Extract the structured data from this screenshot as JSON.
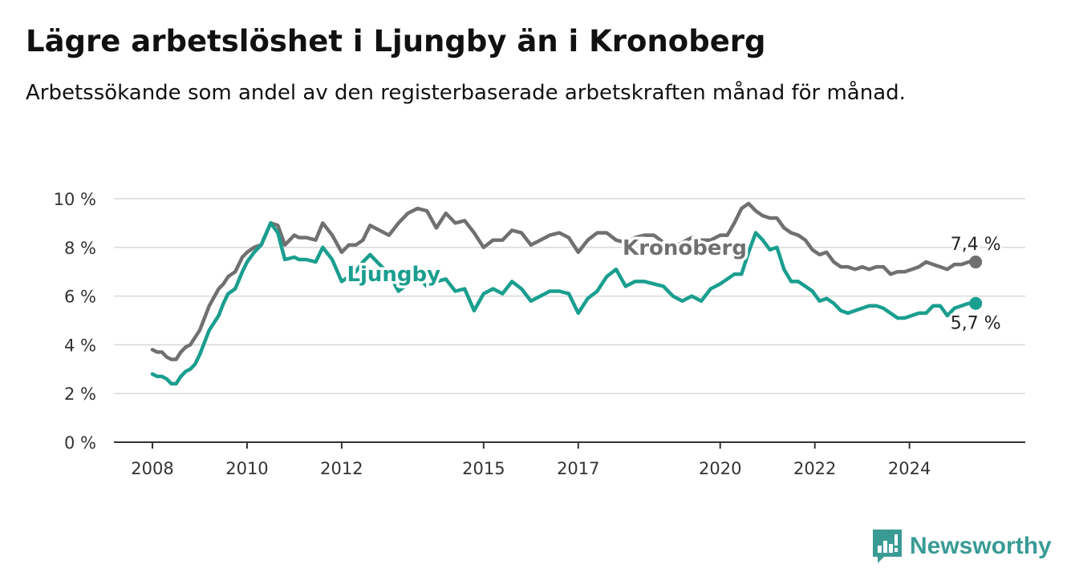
{
  "title": "Lägre arbetslöshet i Ljungby än i Kronoberg",
  "subtitle": "Arbetssökande som andel av den registerbaserade arbetskraften månad för månad.",
  "brand": {
    "name": "Newsworthy",
    "color": "#3a9b95"
  },
  "chart_data": {
    "type": "line",
    "title": "Lägre arbetslöshet i Ljungby än i Kronoberg",
    "ylim": [
      0,
      10
    ],
    "xlim": [
      2008.0,
      2025.6
    ],
    "y_ticks": [
      0,
      2,
      4,
      6,
      8,
      10
    ],
    "y_tick_labels": [
      "0 %",
      "2 %",
      "4 %",
      "6 %",
      "8 %",
      "10 %"
    ],
    "x_ticks": [
      2008,
      2010,
      2012,
      2015,
      2017,
      2020,
      2022,
      2024
    ],
    "x_tick_labels": [
      "2008",
      "2010",
      "2012",
      "2015",
      "2017",
      "2020",
      "2022",
      "2024"
    ],
    "grid": true,
    "legend": "inline labels",
    "series": [
      {
        "name": "Kronoberg",
        "color": "#707070",
        "end_label": "7,4 %",
        "x": [
          2008.0,
          2008.1,
          2008.2,
          2008.3,
          2008.4,
          2008.5,
          2008.6,
          2008.7,
          2008.8,
          2008.9,
          2009.0,
          2009.2,
          2009.4,
          2009.5,
          2009.6,
          2009.75,
          2009.9,
          2010.0,
          2010.15,
          2010.3,
          2010.5,
          2010.65,
          2010.8,
          2011.0,
          2011.1,
          2011.25,
          2011.45,
          2011.6,
          2011.8,
          2012.0,
          2012.15,
          2012.3,
          2012.45,
          2012.6,
          2012.8,
          2013.0,
          2013.2,
          2013.4,
          2013.6,
          2013.8,
          2014.0,
          2014.2,
          2014.4,
          2014.6,
          2014.8,
          2015.0,
          2015.2,
          2015.4,
          2015.6,
          2015.8,
          2016.0,
          2016.2,
          2016.4,
          2016.6,
          2016.8,
          2017.0,
          2017.2,
          2017.4,
          2017.6,
          2017.8,
          2018.0,
          2018.2,
          2018.4,
          2018.6,
          2018.8,
          2019.0,
          2019.2,
          2019.4,
          2019.6,
          2019.8,
          2020.0,
          2020.15,
          2020.3,
          2020.45,
          2020.6,
          2020.75,
          2020.9,
          2021.05,
          2021.2,
          2021.35,
          2021.5,
          2021.65,
          2021.8,
          2021.95,
          2022.1,
          2022.25,
          2022.4,
          2022.55,
          2022.7,
          2022.85,
          2023.0,
          2023.15,
          2023.3,
          2023.45,
          2023.6,
          2023.75,
          2023.9,
          2024.05,
          2024.2,
          2024.35,
          2024.5,
          2024.65,
          2024.8,
          2024.95,
          2025.1,
          2025.25,
          2025.4
        ],
        "values": [
          3.8,
          3.7,
          3.7,
          3.5,
          3.4,
          3.4,
          3.7,
          3.9,
          4.0,
          4.3,
          4.6,
          5.6,
          6.3,
          6.5,
          6.8,
          7.0,
          7.6,
          7.8,
          8.0,
          8.1,
          9.0,
          8.9,
          8.1,
          8.5,
          8.4,
          8.4,
          8.3,
          9.0,
          8.5,
          7.8,
          8.1,
          8.1,
          8.3,
          8.9,
          8.7,
          8.5,
          9.0,
          9.4,
          9.6,
          9.5,
          8.8,
          9.4,
          9.0,
          9.1,
          8.6,
          8.0,
          8.3,
          8.3,
          8.7,
          8.6,
          8.1,
          8.3,
          8.5,
          8.6,
          8.4,
          7.8,
          8.3,
          8.6,
          8.6,
          8.3,
          8.2,
          8.4,
          8.5,
          8.5,
          8.2,
          8.0,
          8.2,
          8.4,
          8.3,
          8.3,
          8.5,
          8.5,
          9.0,
          9.6,
          9.8,
          9.5,
          9.3,
          9.2,
          9.2,
          8.8,
          8.6,
          8.5,
          8.3,
          7.9,
          7.7,
          7.8,
          7.4,
          7.2,
          7.2,
          7.1,
          7.2,
          7.1,
          7.2,
          7.2,
          6.9,
          7.0,
          7.0,
          7.1,
          7.2,
          7.4,
          7.3,
          7.2,
          7.1,
          7.3,
          7.3,
          7.4,
          7.4
        ]
      },
      {
        "name": "Ljungby",
        "color": "#1a9e8f",
        "end_label": "5,7 %",
        "x": [
          2008.0,
          2008.1,
          2008.2,
          2008.3,
          2008.4,
          2008.5,
          2008.6,
          2008.7,
          2008.8,
          2008.9,
          2009.0,
          2009.2,
          2009.4,
          2009.5,
          2009.6,
          2009.75,
          2009.9,
          2010.0,
          2010.15,
          2010.3,
          2010.5,
          2010.65,
          2010.8,
          2011.0,
          2011.1,
          2011.25,
          2011.45,
          2011.6,
          2011.8,
          2012.0,
          2012.15,
          2012.3,
          2012.45,
          2012.6,
          2012.8,
          2013.0,
          2013.2,
          2013.4,
          2013.6,
          2013.8,
          2014.0,
          2014.2,
          2014.4,
          2014.6,
          2014.8,
          2015.0,
          2015.2,
          2015.4,
          2015.6,
          2015.8,
          2016.0,
          2016.2,
          2016.4,
          2016.6,
          2016.8,
          2017.0,
          2017.2,
          2017.4,
          2017.6,
          2017.8,
          2018.0,
          2018.2,
          2018.4,
          2018.6,
          2018.8,
          2019.0,
          2019.2,
          2019.4,
          2019.6,
          2019.8,
          2020.0,
          2020.15,
          2020.3,
          2020.45,
          2020.6,
          2020.75,
          2020.9,
          2021.05,
          2021.2,
          2021.35,
          2021.5,
          2021.65,
          2021.8,
          2021.95,
          2022.1,
          2022.25,
          2022.4,
          2022.55,
          2022.7,
          2022.85,
          2023.0,
          2023.15,
          2023.3,
          2023.45,
          2023.6,
          2023.75,
          2023.9,
          2024.05,
          2024.2,
          2024.35,
          2024.5,
          2024.65,
          2024.8,
          2024.95,
          2025.1,
          2025.25,
          2025.4
        ],
        "values": [
          2.8,
          2.7,
          2.7,
          2.6,
          2.4,
          2.4,
          2.7,
          2.9,
          3.0,
          3.2,
          3.6,
          4.6,
          5.2,
          5.7,
          6.1,
          6.3,
          7.0,
          7.4,
          7.8,
          8.1,
          9.0,
          8.6,
          7.5,
          7.6,
          7.5,
          7.5,
          7.4,
          8.0,
          7.5,
          6.6,
          6.8,
          7.0,
          7.4,
          7.7,
          7.3,
          6.9,
          6.2,
          6.5,
          6.8,
          6.4,
          6.6,
          6.7,
          6.2,
          6.3,
          5.4,
          6.1,
          6.3,
          6.1,
          6.6,
          6.3,
          5.8,
          6.0,
          6.2,
          6.2,
          6.1,
          5.3,
          5.9,
          6.2,
          6.8,
          7.1,
          6.4,
          6.6,
          6.6,
          6.5,
          6.4,
          6.0,
          5.8,
          6.0,
          5.8,
          6.3,
          6.5,
          6.7,
          6.9,
          6.9,
          7.8,
          8.6,
          8.3,
          7.9,
          8.0,
          7.1,
          6.6,
          6.6,
          6.4,
          6.2,
          5.8,
          5.9,
          5.7,
          5.4,
          5.3,
          5.4,
          5.5,
          5.6,
          5.6,
          5.5,
          5.3,
          5.1,
          5.1,
          5.2,
          5.3,
          5.3,
          5.6,
          5.6,
          5.2,
          5.5,
          5.6,
          5.7,
          5.7
        ]
      }
    ]
  }
}
